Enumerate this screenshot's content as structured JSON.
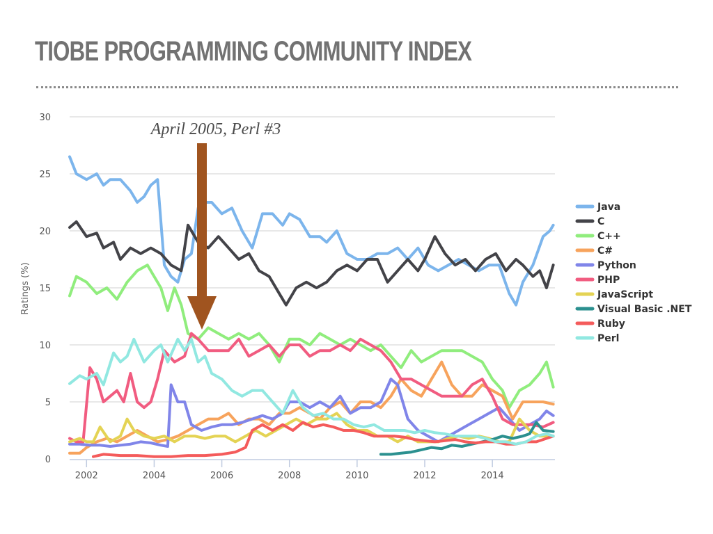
{
  "page": {
    "title": "TIOBE PROGRAMMING COMMUNITY INDEX"
  },
  "annotation": {
    "text": "April 2005, Perl #3",
    "x": 2005.3,
    "arrow_color": "#a0541f"
  },
  "chart_data": {
    "type": "line",
    "title": "TIOBE PROGRAMMING COMMUNITY INDEX",
    "xlabel": "",
    "ylabel": "Ratings (%)",
    "xlim": [
      2001.5,
      2015.85
    ],
    "ylim": [
      0,
      30
    ],
    "yticks": [
      "0",
      "5",
      "10",
      "15",
      "20",
      "25",
      "30"
    ],
    "ytick_values": [
      0,
      5,
      10,
      15,
      20,
      25,
      30
    ],
    "xticks": [
      "2002",
      "2004",
      "2006",
      "2008",
      "2010",
      "2012",
      "2014"
    ],
    "xtick_values": [
      2002,
      2004,
      2006,
      2008,
      2010,
      2012,
      2014
    ],
    "grid": true,
    "legend_position": "right",
    "series": [
      {
        "name": "Java",
        "color": "#7cb5ec",
        "x": [
          2001.5,
          2001.7,
          2002.0,
          2002.3,
          2002.5,
          2002.7,
          2003.0,
          2003.3,
          2003.5,
          2003.7,
          2003.9,
          2004.1,
          2004.3,
          2004.5,
          2004.7,
          2004.9,
          2005.1,
          2005.3,
          2005.5,
          2005.7,
          2006.0,
          2006.3,
          2006.6,
          2006.9,
          2007.2,
          2007.5,
          2007.8,
          2008.0,
          2008.3,
          2008.6,
          2008.9,
          2009.1,
          2009.4,
          2009.7,
          2010.0,
          2010.3,
          2010.6,
          2010.9,
          2011.2,
          2011.5,
          2011.8,
          2012.1,
          2012.4,
          2012.7,
          2013.0,
          2013.3,
          2013.6,
          2013.9,
          2014.2,
          2014.5,
          2014.7,
          2014.9,
          2015.2,
          2015.5,
          2015.7,
          2015.8
        ],
        "values": [
          26.5,
          25.0,
          24.5,
          25.0,
          24.0,
          24.5,
          24.5,
          23.5,
          22.5,
          23.0,
          24.0,
          24.5,
          17.0,
          16.0,
          15.5,
          17.5,
          18.0,
          22.0,
          22.5,
          22.5,
          21.5,
          22.0,
          20.0,
          18.5,
          21.5,
          21.5,
          20.5,
          21.5,
          21.0,
          19.5,
          19.5,
          19.0,
          20.0,
          18.0,
          17.5,
          17.5,
          18.0,
          18.0,
          18.5,
          17.5,
          18.5,
          17.0,
          16.5,
          17.0,
          17.5,
          17.0,
          16.5,
          17.0,
          17.0,
          14.5,
          13.5,
          15.5,
          17.0,
          19.5,
          20.0,
          20.5
        ]
      },
      {
        "name": "C",
        "color": "#434348",
        "x": [
          2001.5,
          2001.7,
          2002.0,
          2002.3,
          2002.5,
          2002.8,
          2003.0,
          2003.3,
          2003.6,
          2003.9,
          2004.2,
          2004.5,
          2004.8,
          2005.0,
          2005.3,
          2005.6,
          2005.9,
          2006.2,
          2006.5,
          2006.8,
          2007.1,
          2007.4,
          2007.7,
          2007.9,
          2008.2,
          2008.5,
          2008.8,
          2009.1,
          2009.4,
          2009.7,
          2010.0,
          2010.3,
          2010.6,
          2010.9,
          2011.2,
          2011.5,
          2011.8,
          2012.0,
          2012.3,
          2012.6,
          2012.9,
          2013.2,
          2013.5,
          2013.8,
          2014.1,
          2014.4,
          2014.7,
          2014.9,
          2015.2,
          2015.4,
          2015.6,
          2015.8
        ],
        "values": [
          20.3,
          20.8,
          19.5,
          19.8,
          18.5,
          19.0,
          17.5,
          18.5,
          18.0,
          18.5,
          18.0,
          17.0,
          16.5,
          20.5,
          19.0,
          18.5,
          19.5,
          18.5,
          17.5,
          18.0,
          16.5,
          16.0,
          14.5,
          13.5,
          15.0,
          15.5,
          15.0,
          15.5,
          16.5,
          17.0,
          16.5,
          17.5,
          17.5,
          15.5,
          16.5,
          17.5,
          16.5,
          17.5,
          19.5,
          18.0,
          17.0,
          17.5,
          16.5,
          17.5,
          18.0,
          16.5,
          17.5,
          17.0,
          16.0,
          16.5,
          15.0,
          17.0
        ]
      },
      {
        "name": "C++",
        "color": "#90ed7d",
        "x": [
          2001.5,
          2001.7,
          2002.0,
          2002.3,
          2002.6,
          2002.9,
          2003.2,
          2003.5,
          2003.8,
          2004.0,
          2004.2,
          2004.4,
          2004.6,
          2004.8,
          2005.0,
          2005.3,
          2005.6,
          2005.9,
          2006.2,
          2006.5,
          2006.8,
          2007.1,
          2007.4,
          2007.7,
          2008.0,
          2008.3,
          2008.6,
          2008.9,
          2009.2,
          2009.5,
          2009.8,
          2010.1,
          2010.4,
          2010.7,
          2011.0,
          2011.3,
          2011.6,
          2011.9,
          2012.2,
          2012.5,
          2012.8,
          2013.1,
          2013.4,
          2013.7,
          2014.0,
          2014.3,
          2014.5,
          2014.8,
          2015.1,
          2015.4,
          2015.6,
          2015.8
        ],
        "values": [
          14.3,
          16.0,
          15.5,
          14.5,
          15.0,
          14.0,
          15.5,
          16.5,
          17.0,
          16.0,
          15.0,
          13.0,
          15.0,
          13.5,
          11.0,
          10.5,
          11.5,
          11.0,
          10.5,
          11.0,
          10.5,
          11.0,
          10.0,
          8.5,
          10.5,
          10.5,
          10.0,
          11.0,
          10.5,
          10.0,
          10.5,
          10.0,
          9.5,
          10.0,
          9.0,
          8.0,
          9.5,
          8.5,
          9.0,
          9.5,
          9.5,
          9.5,
          9.0,
          8.5,
          7.0,
          6.0,
          4.5,
          6.0,
          6.5,
          7.5,
          8.5,
          6.3
        ]
      },
      {
        "name": "C#",
        "color": "#f7a35c",
        "x": [
          2001.5,
          2001.8,
          2002.0,
          2002.3,
          2002.6,
          2002.9,
          2003.2,
          2003.5,
          2003.8,
          2004.1,
          2004.4,
          2004.7,
          2005.0,
          2005.3,
          2005.6,
          2005.9,
          2006.2,
          2006.5,
          2006.8,
          2007.1,
          2007.4,
          2007.7,
          2008.0,
          2008.3,
          2008.6,
          2008.9,
          2009.2,
          2009.5,
          2009.8,
          2010.1,
          2010.4,
          2010.7,
          2011.0,
          2011.3,
          2011.6,
          2011.9,
          2012.2,
          2012.5,
          2012.8,
          2013.1,
          2013.4,
          2013.7,
          2014.0,
          2014.3,
          2014.6,
          2014.9,
          2015.2,
          2015.5,
          2015.8
        ],
        "values": [
          0.5,
          0.5,
          1.0,
          1.5,
          1.8,
          1.5,
          2.0,
          2.5,
          2.0,
          1.5,
          1.7,
          2.0,
          2.5,
          3.0,
          3.5,
          3.5,
          4.0,
          3.0,
          3.5,
          3.5,
          3.0,
          4.0,
          4.0,
          4.5,
          4.0,
          3.5,
          4.5,
          5.0,
          4.0,
          5.0,
          5.0,
          4.5,
          5.5,
          7.0,
          6.0,
          5.5,
          7.0,
          8.5,
          6.5,
          5.5,
          5.5,
          6.5,
          6.0,
          5.5,
          3.5,
          5.0,
          5.0,
          5.0,
          4.8
        ]
      },
      {
        "name": "Python",
        "color": "#8085e9",
        "x": [
          2001.5,
          2001.8,
          2002.1,
          2002.4,
          2002.7,
          2003.0,
          2003.3,
          2003.6,
          2003.9,
          2004.2,
          2004.4,
          2004.5,
          2004.7,
          2004.9,
          2005.1,
          2005.4,
          2005.7,
          2006.0,
          2006.3,
          2006.6,
          2006.9,
          2007.2,
          2007.5,
          2007.8,
          2008.0,
          2008.3,
          2008.6,
          2008.9,
          2009.2,
          2009.5,
          2009.8,
          2010.1,
          2010.4,
          2010.7,
          2011.0,
          2011.2,
          2011.5,
          2011.8,
          2012.1,
          2012.4,
          2012.7,
          2013.0,
          2013.3,
          2013.6,
          2013.9,
          2014.2,
          2014.5,
          2014.8,
          2015.1,
          2015.4,
          2015.6,
          2015.8
        ],
        "values": [
          1.3,
          1.3,
          1.2,
          1.2,
          1.1,
          1.2,
          1.3,
          1.5,
          1.4,
          1.2,
          1.1,
          6.5,
          5.0,
          5.0,
          3.0,
          2.5,
          2.8,
          3.0,
          3.0,
          3.2,
          3.5,
          3.8,
          3.5,
          4.0,
          5.0,
          5.0,
          4.5,
          5.0,
          4.5,
          5.5,
          4.0,
          4.5,
          4.5,
          5.0,
          7.0,
          6.5,
          3.5,
          2.5,
          2.0,
          1.5,
          2.0,
          2.5,
          3.0,
          3.5,
          4.0,
          4.5,
          3.5,
          2.5,
          3.0,
          3.5,
          4.2,
          3.8
        ]
      },
      {
        "name": "PHP",
        "color": "#f15c80",
        "x": [
          2001.5,
          2001.7,
          2001.9,
          2002.1,
          2002.3,
          2002.5,
          2002.7,
          2002.9,
          2003.1,
          2003.3,
          2003.5,
          2003.7,
          2003.9,
          2004.1,
          2004.3,
          2004.6,
          2004.9,
          2005.1,
          2005.3,
          2005.6,
          2005.9,
          2006.2,
          2006.5,
          2006.8,
          2007.1,
          2007.4,
          2007.7,
          2008.0,
          2008.3,
          2008.6,
          2008.9,
          2009.2,
          2009.5,
          2009.8,
          2010.1,
          2010.4,
          2010.7,
          2011.0,
          2011.3,
          2011.6,
          2011.9,
          2012.2,
          2012.5,
          2012.8,
          2013.1,
          2013.4,
          2013.7,
          2014.0,
          2014.3,
          2014.6,
          2014.9,
          2015.2,
          2015.5,
          2015.8
        ],
        "values": [
          1.8,
          1.5,
          1.5,
          8.0,
          7.0,
          5.0,
          5.5,
          6.0,
          5.0,
          7.5,
          5.0,
          4.5,
          5.0,
          7.0,
          9.5,
          8.5,
          9.0,
          11.0,
          10.5,
          9.5,
          9.5,
          9.5,
          10.5,
          9.0,
          9.5,
          10.0,
          9.0,
          10.0,
          10.0,
          9.0,
          9.5,
          9.5,
          10.0,
          9.5,
          10.5,
          10.0,
          9.5,
          8.5,
          7.0,
          7.0,
          6.5,
          6.0,
          5.5,
          5.5,
          5.5,
          6.5,
          7.0,
          5.5,
          3.5,
          3.0,
          3.0,
          3.0,
          2.8,
          3.2
        ]
      },
      {
        "name": "JavaScript",
        "color": "#e4d354",
        "x": [
          2001.5,
          2001.8,
          2002.0,
          2002.2,
          2002.4,
          2002.7,
          2003.0,
          2003.2,
          2003.4,
          2003.7,
          2004.0,
          2004.3,
          2004.6,
          2004.9,
          2005.2,
          2005.5,
          2005.8,
          2006.1,
          2006.4,
          2006.7,
          2007.0,
          2007.3,
          2007.6,
          2007.9,
          2008.2,
          2008.5,
          2008.8,
          2009.1,
          2009.4,
          2009.7,
          2010.0,
          2010.3,
          2010.6,
          2010.9,
          2011.2,
          2011.5,
          2011.8,
          2012.1,
          2012.4,
          2012.7,
          2013.0,
          2013.3,
          2013.6,
          2013.9,
          2014.2,
          2014.5,
          2014.8,
          2015.1,
          2015.4,
          2015.8
        ],
        "values": [
          1.5,
          1.8,
          1.5,
          1.5,
          2.8,
          1.5,
          2.0,
          3.5,
          2.5,
          2.0,
          1.8,
          2.0,
          1.5,
          2.0,
          2.0,
          1.8,
          2.0,
          2.0,
          1.5,
          2.0,
          2.5,
          2.0,
          2.5,
          3.0,
          3.5,
          3.0,
          3.5,
          3.5,
          4.0,
          3.0,
          2.5,
          2.5,
          2.0,
          2.0,
          1.5,
          2.0,
          1.5,
          1.5,
          1.5,
          1.8,
          2.0,
          1.8,
          2.0,
          1.8,
          1.5,
          1.5,
          3.5,
          2.5,
          2.0,
          2.0
        ]
      },
      {
        "name": "Visual Basic .NET",
        "color": "#2b908f",
        "x": [
          2010.7,
          2011.0,
          2011.3,
          2011.6,
          2011.9,
          2012.2,
          2012.5,
          2012.8,
          2013.1,
          2013.4,
          2013.7,
          2014.0,
          2014.3,
          2014.6,
          2014.9,
          2015.1,
          2015.3,
          2015.5,
          2015.8
        ],
        "values": [
          0.4,
          0.4,
          0.5,
          0.6,
          0.8,
          1.0,
          0.9,
          1.2,
          1.1,
          1.3,
          1.5,
          1.7,
          2.0,
          1.8,
          2.0,
          2.2,
          3.2,
          2.5,
          2.4
        ]
      },
      {
        "name": "Ruby",
        "color": "#f45b5b",
        "x": [
          2002.2,
          2002.5,
          2003.0,
          2003.5,
          2004.0,
          2004.5,
          2005.0,
          2005.5,
          2006.0,
          2006.4,
          2006.7,
          2006.9,
          2007.2,
          2007.5,
          2007.8,
          2008.1,
          2008.4,
          2008.7,
          2009.0,
          2009.3,
          2009.6,
          2009.9,
          2010.2,
          2010.5,
          2010.8,
          2011.1,
          2011.4,
          2011.7,
          2012.0,
          2012.3,
          2012.6,
          2012.9,
          2013.2,
          2013.5,
          2013.8,
          2014.1,
          2014.4,
          2014.7,
          2015.0,
          2015.3,
          2015.6,
          2015.8
        ],
        "values": [
          0.2,
          0.4,
          0.3,
          0.3,
          0.2,
          0.2,
          0.3,
          0.3,
          0.4,
          0.6,
          1.0,
          2.5,
          3.0,
          2.5,
          3.0,
          2.5,
          3.2,
          2.8,
          3.0,
          2.8,
          2.5,
          2.5,
          2.3,
          2.0,
          2.0,
          2.0,
          1.9,
          1.7,
          1.6,
          1.5,
          1.6,
          1.7,
          1.5,
          1.4,
          1.5,
          1.5,
          1.3,
          1.3,
          1.5,
          1.5,
          1.8,
          2.0
        ]
      },
      {
        "name": "Perl",
        "color": "#91e8e1",
        "x": [
          2001.5,
          2001.8,
          2002.0,
          2002.3,
          2002.5,
          2002.8,
          2003.0,
          2003.2,
          2003.4,
          2003.7,
          2004.0,
          2004.2,
          2004.4,
          2004.7,
          2004.9,
          2005.1,
          2005.3,
          2005.5,
          2005.7,
          2006.0,
          2006.3,
          2006.6,
          2006.9,
          2007.2,
          2007.5,
          2007.8,
          2008.1,
          2008.4,
          2008.7,
          2009.0,
          2009.3,
          2009.6,
          2009.9,
          2010.2,
          2010.5,
          2010.8,
          2011.1,
          2011.4,
          2011.7,
          2012.0,
          2012.3,
          2012.6,
          2012.9,
          2013.2,
          2013.5,
          2013.8,
          2014.1,
          2014.4,
          2014.7,
          2015.0,
          2015.3,
          2015.6,
          2015.8
        ],
        "values": [
          6.6,
          7.3,
          7.0,
          7.5,
          6.5,
          9.3,
          8.5,
          9.0,
          10.5,
          8.5,
          9.5,
          10.0,
          8.5,
          10.5,
          9.5,
          10.5,
          8.5,
          9.0,
          7.5,
          7.0,
          6.0,
          5.5,
          6.0,
          6.0,
          5.0,
          4.0,
          6.0,
          4.5,
          3.8,
          4.0,
          3.5,
          3.5,
          3.0,
          2.8,
          3.0,
          2.5,
          2.5,
          2.5,
          2.3,
          2.5,
          2.3,
          2.2,
          2.0,
          2.0,
          2.0,
          1.8,
          1.5,
          1.5,
          1.3,
          1.5,
          2.0,
          2.2,
          2.0
        ]
      }
    ]
  }
}
